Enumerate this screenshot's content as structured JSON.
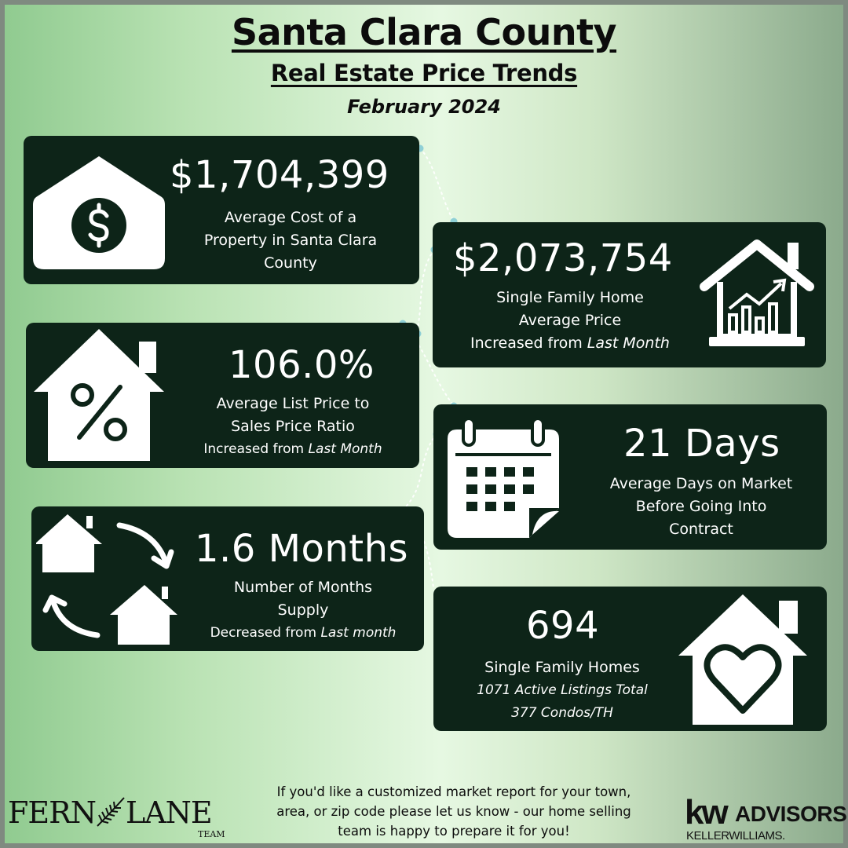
{
  "header": {
    "title": "Santa Clara County",
    "subtitle": "Real Estate Price Trends",
    "date": "February 2024"
  },
  "cards": {
    "avg_cost": {
      "value": "$1,704,399",
      "line1": "Average Cost of a",
      "line2": "Property in Santa Clara",
      "line3": "County",
      "icon": "house-dollar-icon"
    },
    "sfh_price": {
      "value": "$2,073,754",
      "line1": "Single Family Home",
      "line2": "Average Price",
      "line3_prefix": "Increased from ",
      "line3_emph": "Last Month",
      "icon": "house-chart-icon"
    },
    "list_ratio": {
      "value": "106.0%",
      "line1": "Average List Price to",
      "line2": "Sales Price Ratio",
      "line3_prefix": "Increased from ",
      "line3_emph": "Last Month",
      "icon": "house-percent-icon"
    },
    "days": {
      "value": "21 Days",
      "line1": "Average Days on Market",
      "line2": "Before Going Into",
      "line3": "Contract",
      "icon": "calendar-icon"
    },
    "supply": {
      "value": "1.6 Months",
      "line1": "Number of Months",
      "line2": "Supply",
      "line3_prefix": "Decreased from ",
      "line3_emph": "Last month",
      "icon": "house-exchange-icon"
    },
    "sfh_count": {
      "value": "694",
      "line1": "Single Family Homes",
      "line2": "1071 Active Listings Total",
      "line3": "377 Condos/TH",
      "icon": "house-heart-icon"
    }
  },
  "footer": {
    "line1": "If you'd like a customized market report for your town,",
    "line2": "area, or zip code please let us know - our home selling",
    "line3": "team is happy to prepare it for you!",
    "logo_left_a": "FERN",
    "logo_left_b": "LANE",
    "logo_left_team": "TEAM",
    "logo_right_kw": "kw",
    "logo_right_advisors": "ADVISORS",
    "logo_right_sub": "KELLERWILLIAMS."
  },
  "colors": {
    "card_bg": "#0d2418",
    "accent_dots": "#8fd0d6"
  }
}
